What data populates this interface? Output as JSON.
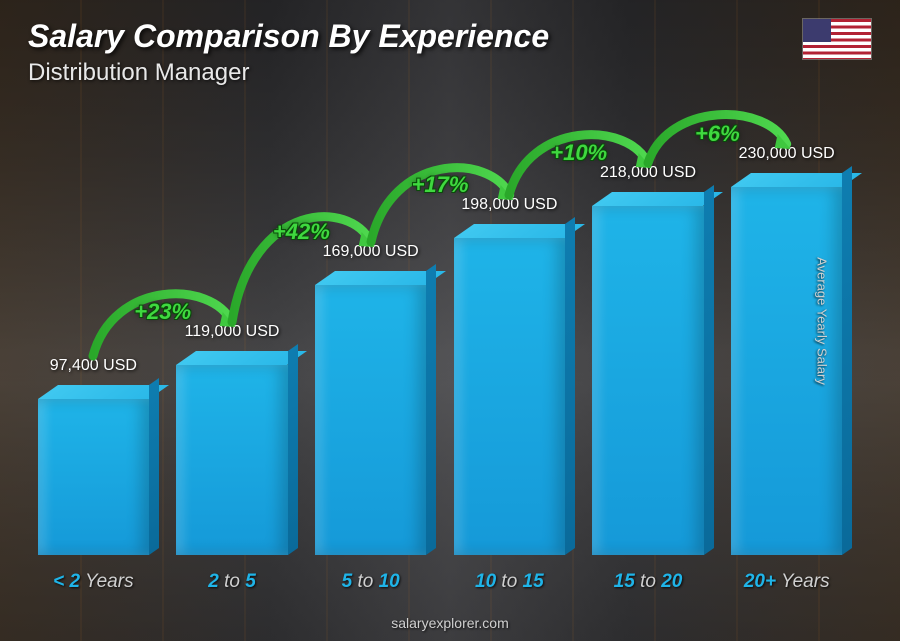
{
  "title": "Salary Comparison By Experience",
  "subtitle": "Distribution Manager",
  "ylabel": "Average Yearly Salary",
  "footer": "salaryexplorer.com",
  "flag_country": "United States",
  "chart": {
    "type": "bar",
    "value_suffix": " USD",
    "bar_colors": {
      "front": "#1fb4e8",
      "top": "#3fc8f0",
      "side": "#0e7db0"
    },
    "pct_color": "#3fd83f",
    "pct_outline": "#0a4a0a",
    "xlabel_accent_color": "#1fb4e8",
    "xlabel_light_color": "#d0d0d0",
    "text_color": "#ffffff",
    "value_fontsize": 16,
    "title_fontsize": 32,
    "subtitle_fontsize": 24,
    "xlabel_fontsize": 19,
    "pct_fontsize": 22,
    "max_value": 250000,
    "background": "warehouse-photo",
    "bars": [
      {
        "label_prefix": "< 2",
        "label_suffix": " Years",
        "value": 97400,
        "value_label": "97,400 USD",
        "pct": null
      },
      {
        "label_prefix": "2",
        "label_mid": " to ",
        "label_end": "5",
        "value": 119000,
        "value_label": "119,000 USD",
        "pct": "+23%"
      },
      {
        "label_prefix": "5",
        "label_mid": " to ",
        "label_end": "10",
        "value": 169000,
        "value_label": "169,000 USD",
        "pct": "+42%"
      },
      {
        "label_prefix": "10",
        "label_mid": " to ",
        "label_end": "15",
        "value": 198000,
        "value_label": "198,000 USD",
        "pct": "+17%"
      },
      {
        "label_prefix": "15",
        "label_mid": " to ",
        "label_end": "20",
        "value": 218000,
        "value_label": "218,000 USD",
        "pct": "+10%"
      },
      {
        "label_prefix": "20+",
        "label_suffix": " Years",
        "value": 230000,
        "value_label": "230,000 USD",
        "pct": "+6%"
      }
    ]
  }
}
